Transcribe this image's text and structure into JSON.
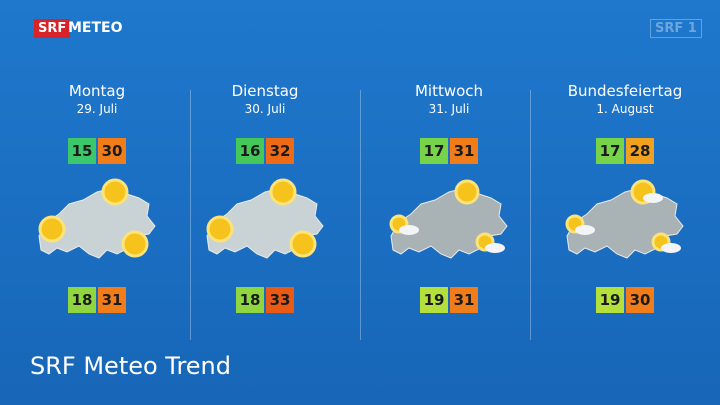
{
  "header": {
    "logo_badge": "SRF",
    "logo_text": "METEO",
    "channel_logo": "SRF 1"
  },
  "days": [
    {
      "name": "Montag",
      "date": "29. Juli",
      "top": [
        "15",
        "30"
      ],
      "bottom": [
        "18",
        "31"
      ]
    },
    {
      "name": "Dienstag",
      "date": "30. Juli",
      "top": [
        "16",
        "32"
      ],
      "bottom": [
        "18",
        "33"
      ]
    },
    {
      "name": "Mittwoch",
      "date": "31. Juli",
      "top": [
        "17",
        "31"
      ],
      "bottom": [
        "19",
        "31"
      ]
    },
    {
      "name": "Bundesfeiertag",
      "date": "1. August",
      "top": [
        "17",
        "28"
      ],
      "bottom": [
        "19",
        "30"
      ]
    }
  ],
  "footer": {
    "title": "SRF Meteo Trend"
  }
}
